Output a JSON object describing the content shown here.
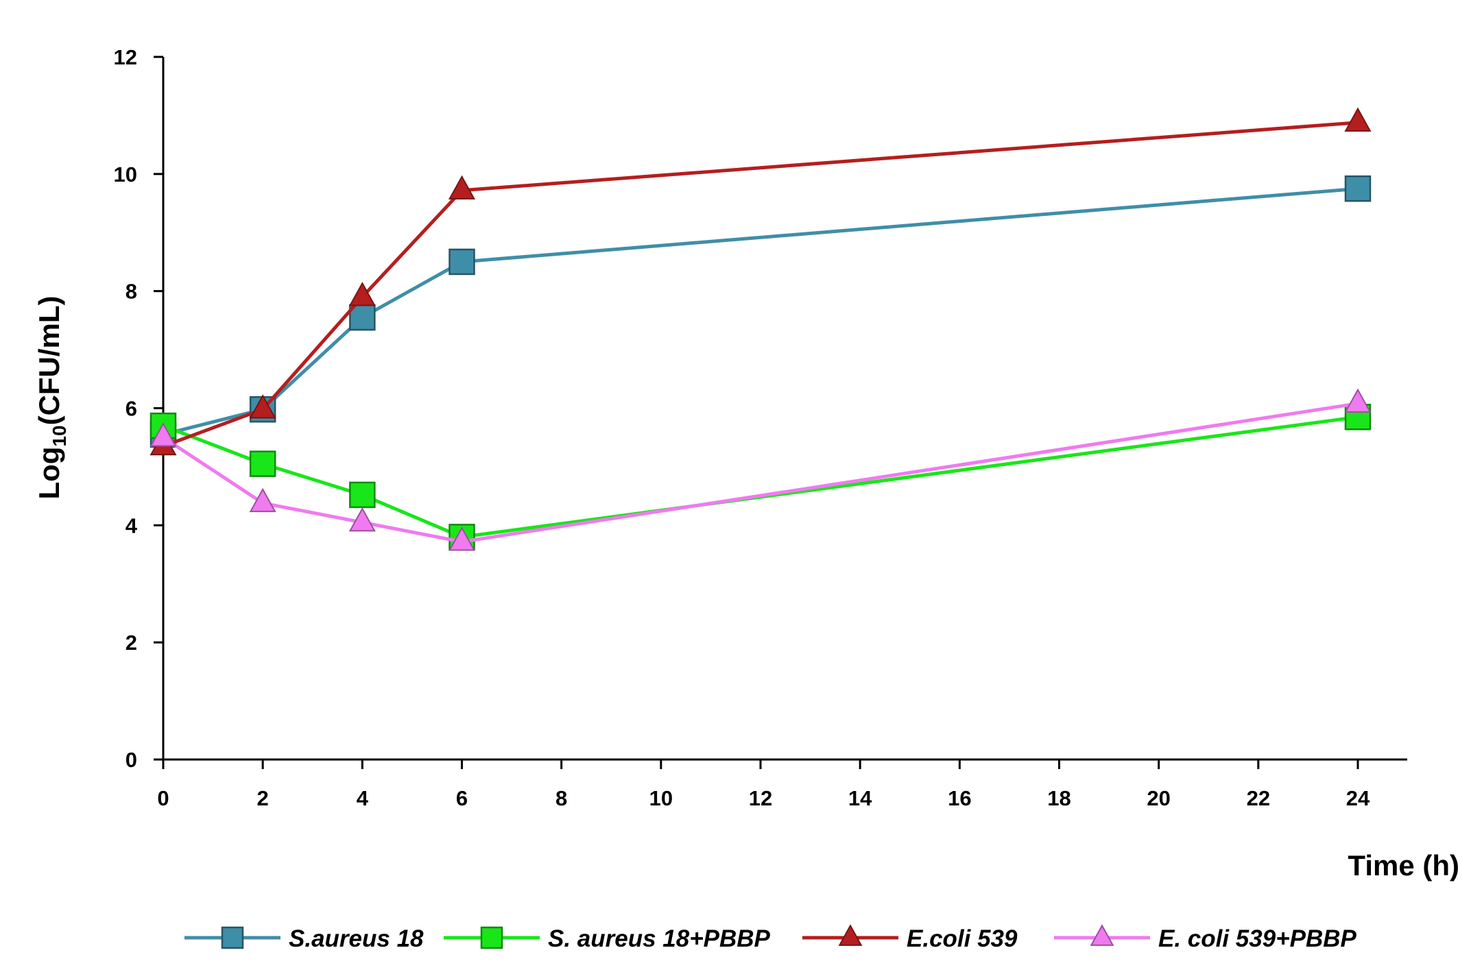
{
  "chart_data": {
    "type": "line",
    "xlabel": "Time (h)",
    "ylabel_base": "Log",
    "ylabel_sub": "10",
    "ylabel_rest": "(CFU/mL)",
    "xlim": [
      0,
      24
    ],
    "ylim": [
      0,
      12
    ],
    "x_ticks": [
      0,
      2,
      4,
      6,
      8,
      10,
      12,
      14,
      16,
      18,
      20,
      22,
      24
    ],
    "y_ticks": [
      0,
      2,
      4,
      6,
      8,
      10,
      12
    ],
    "x": [
      0,
      2,
      4,
      6,
      24
    ],
    "grid": false,
    "legend_position": "bottom",
    "series": [
      {
        "name": "S.aureus 18",
        "values": [
          5.55,
          5.98,
          7.55,
          8.5,
          9.75
        ],
        "color": "#3f8ea8",
        "marker": "square"
      },
      {
        "name": "S. aureus 18+PBBP",
        "values": [
          5.7,
          5.05,
          4.52,
          3.8,
          5.85
        ],
        "color": "#19e619",
        "marker": "square"
      },
      {
        "name": "E.coli 539",
        "values": [
          5.35,
          5.98,
          7.9,
          9.72,
          10.88
        ],
        "color": "#b51e1e",
        "marker": "triangle"
      },
      {
        "name": "E. coli 539+PBBP",
        "values": [
          5.5,
          4.38,
          4.05,
          3.72,
          6.08
        ],
        "color": "#f07af0",
        "marker": "triangle"
      }
    ]
  }
}
